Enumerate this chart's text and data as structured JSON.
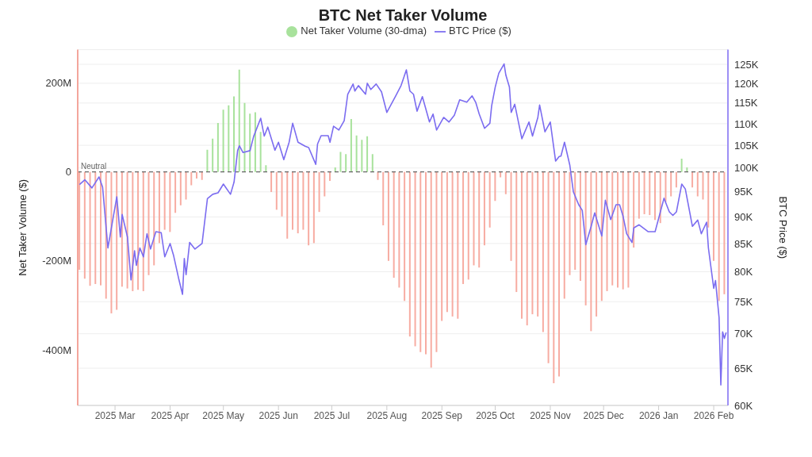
{
  "chart_data": {
    "type": "bar",
    "title": "BTC Net Taker Volume",
    "ylabel": "Net Taker Volume ($)",
    "y2label": "BTC Price ($)",
    "xlim": [
      "2025-02-08",
      "2026-02-09"
    ],
    "xticks": [
      {
        "value": "2025-03-01",
        "label": "2025 Mar"
      },
      {
        "value": "2025-04-01",
        "label": "2025 Apr"
      },
      {
        "value": "2025-05-01",
        "label": "2025 May"
      },
      {
        "value": "2025-06-01",
        "label": "2025 Jun"
      },
      {
        "value": "2025-07-01",
        "label": "2025 Jul"
      },
      {
        "value": "2025-08-01",
        "label": "2025 Aug"
      },
      {
        "value": "2025-09-01",
        "label": "2025 Sep"
      },
      {
        "value": "2025-10-01",
        "label": "2025 Oct"
      },
      {
        "value": "2025-11-01",
        "label": "2025 Nov"
      },
      {
        "value": "2025-12-01",
        "label": "2025 Dec"
      },
      {
        "value": "2026-01-01",
        "label": "2026 Jan"
      },
      {
        "value": "2026-02-01",
        "label": "2026 Feb"
      }
    ],
    "ylim": [
      -525,
      275
    ],
    "yticks": [
      {
        "value": -400,
        "label": "-400M"
      },
      {
        "value": -200,
        "label": "-200M"
      },
      0,
      {
        "value": 200,
        "label": "200M"
      }
    ],
    "y2lim": [
      60000,
      129000
    ],
    "y2ticks": [
      {
        "value": 60000,
        "label": "60K"
      },
      {
        "value": 65000,
        "label": "65K"
      },
      {
        "value": 70000,
        "label": "70K"
      },
      {
        "value": 75000,
        "label": "75K"
      },
      {
        "value": 80000,
        "label": "80K"
      },
      {
        "value": 85000,
        "label": "85K"
      },
      {
        "value": 90000,
        "label": "90K"
      },
      {
        "value": 95000,
        "label": "95K"
      },
      {
        "value": 100000,
        "label": "100K"
      },
      {
        "value": 105000,
        "label": "105K"
      },
      {
        "value": 110000,
        "label": "110K"
      },
      {
        "value": 115000,
        "label": "115K"
      },
      {
        "value": 120000,
        "label": "120K"
      },
      {
        "value": 125000,
        "label": "125K"
      }
    ],
    "log": "y2",
    "grid": "y",
    "legend": "top",
    "marker": "none",
    "ref_lines": [
      {
        "axis": "y",
        "value": 0,
        "label": "Neutral",
        "color": "#666666",
        "line_style": "dashed"
      }
    ],
    "series": [
      {
        "axis": "y",
        "name": "Net Taker Volume (30-dma)",
        "color": "#a8e29c",
        "x": [
          "2025-02-09",
          "2025-02-12",
          "2025-02-15",
          "2025-02-18",
          "2025-02-21",
          "2025-02-24",
          "2025-02-27",
          "2025-03-02",
          "2025-03-05",
          "2025-03-08",
          "2025-03-11",
          "2025-03-14",
          "2025-03-17",
          "2025-03-20",
          "2025-03-23",
          "2025-03-26",
          "2025-03-29",
          "2025-04-01",
          "2025-04-04",
          "2025-04-07",
          "2025-04-10",
          "2025-04-13",
          "2025-04-16",
          "2025-04-19",
          "2025-04-22",
          "2025-04-25",
          "2025-04-28",
          "2025-05-01",
          "2025-05-04",
          "2025-05-07",
          "2025-05-10",
          "2025-05-13",
          "2025-05-16",
          "2025-05-19",
          "2025-05-22",
          "2025-05-25",
          "2025-05-28",
          "2025-05-31",
          "2025-06-03",
          "2025-06-06",
          "2025-06-09",
          "2025-06-12",
          "2025-06-15",
          "2025-06-18",
          "2025-06-21",
          "2025-06-24",
          "2025-06-27",
          "2025-06-30",
          "2025-07-03",
          "2025-07-06",
          "2025-07-09",
          "2025-07-12",
          "2025-07-15",
          "2025-07-18",
          "2025-07-21",
          "2025-07-24",
          "2025-07-27",
          "2025-07-30",
          "2025-08-02",
          "2025-08-05",
          "2025-08-08",
          "2025-08-11",
          "2025-08-14",
          "2025-08-17",
          "2025-08-20",
          "2025-08-23",
          "2025-08-26",
          "2025-08-29",
          "2025-09-01",
          "2025-09-04",
          "2025-09-07",
          "2025-09-10",
          "2025-09-13",
          "2025-09-16",
          "2025-09-19",
          "2025-09-22",
          "2025-09-25",
          "2025-09-28",
          "2025-10-01",
          "2025-10-04",
          "2025-10-07",
          "2025-10-10",
          "2025-10-13",
          "2025-10-16",
          "2025-10-19",
          "2025-10-22",
          "2025-10-25",
          "2025-10-28",
          "2025-10-31",
          "2025-11-03",
          "2025-11-06",
          "2025-11-09",
          "2025-11-12",
          "2025-11-15",
          "2025-11-18",
          "2025-11-21",
          "2025-11-24",
          "2025-11-27",
          "2025-11-30",
          "2025-12-03",
          "2025-12-06",
          "2025-12-09",
          "2025-12-12",
          "2025-12-15",
          "2025-12-18",
          "2025-12-21",
          "2025-12-24",
          "2025-12-27",
          "2025-12-30",
          "2026-01-02",
          "2026-01-05",
          "2026-01-08",
          "2026-01-11",
          "2026-01-14",
          "2026-01-17",
          "2026-01-20",
          "2026-01-23",
          "2026-01-26",
          "2026-01-29",
          "2026-02-01",
          "2026-02-04",
          "2026-02-07"
        ],
        "values": [
          -220,
          -240,
          -256,
          -252,
          -255,
          -285,
          -318,
          -310,
          -258,
          -262,
          -268,
          -265,
          -268,
          -232,
          -210,
          -160,
          -130,
          -135,
          -92,
          -75,
          -62,
          -30,
          -15,
          -18,
          50,
          75,
          110,
          140,
          150,
          170,
          230,
          155,
          131,
          134,
          90,
          15,
          -45,
          -85,
          -100,
          -150,
          -130,
          -138,
          -130,
          -165,
          -160,
          -90,
          -55,
          -20,
          10,
          45,
          40,
          119,
          82,
          72,
          80,
          40,
          -18,
          -120,
          -200,
          -238,
          -260,
          -290,
          -370,
          -392,
          -405,
          -410,
          -440,
          -405,
          -335,
          -315,
          -325,
          -330,
          -252,
          -242,
          -210,
          -215,
          -165,
          -125,
          -65,
          -12,
          -50,
          -200,
          -270,
          -330,
          -345,
          -320,
          -325,
          -360,
          -430,
          -475,
          -460,
          -285,
          -232,
          -220,
          -245,
          -300,
          -358,
          -325,
          -290,
          -268,
          -255,
          -260,
          -264,
          -260,
          -170,
          -105,
          -95,
          -97,
          -108,
          -115,
          -68,
          -55,
          -35,
          30,
          10,
          -35,
          -55,
          -62,
          -125,
          -200,
          -290,
          -275
        ],
        "colors": [
          "#f7aca2",
          "#f7aca2",
          "#f7aca2",
          "#f7aca2",
          "#f7aca2",
          "#f7aca2",
          "#f7aca2",
          "#f7aca2",
          "#f7aca2",
          "#f7aca2",
          "#f7aca2",
          "#f7aca2",
          "#f7aca2",
          "#f7aca2",
          "#f7aca2",
          "#f7aca2",
          "#f7aca2",
          "#f7aca2",
          "#f7aca2",
          "#f7aca2",
          "#f7aca2",
          "#f7aca2",
          "#f7aca2",
          "#f7aca2",
          "#a8e29c",
          "#a8e29c",
          "#a8e29c",
          "#a8e29c",
          "#a8e29c",
          "#a8e29c",
          "#a8e29c",
          "#a8e29c",
          "#a8e29c",
          "#a8e29c",
          "#a8e29c",
          "#a8e29c",
          "#f7aca2",
          "#f7aca2",
          "#f7aca2",
          "#f7aca2",
          "#f7aca2",
          "#f7aca2",
          "#f7aca2",
          "#f7aca2",
          "#f7aca2",
          "#f7aca2",
          "#f7aca2",
          "#f7aca2",
          "#a8e29c",
          "#a8e29c",
          "#a8e29c",
          "#a8e29c",
          "#a8e29c",
          "#a8e29c",
          "#a8e29c",
          "#a8e29c",
          "#f7aca2",
          "#f7aca2",
          "#f7aca2",
          "#f7aca2",
          "#f7aca2",
          "#f7aca2",
          "#f7aca2",
          "#f7aca2",
          "#f7aca2",
          "#f7aca2",
          "#f7aca2",
          "#f7aca2",
          "#f7aca2",
          "#f7aca2",
          "#f7aca2",
          "#f7aca2",
          "#f7aca2",
          "#f7aca2",
          "#f7aca2",
          "#f7aca2",
          "#f7aca2",
          "#f7aca2",
          "#f7aca2",
          "#f7aca2",
          "#f7aca2",
          "#f7aca2",
          "#f7aca2",
          "#f7aca2",
          "#f7aca2",
          "#f7aca2",
          "#f7aca2",
          "#f7aca2",
          "#f7aca2",
          "#f7aca2",
          "#f7aca2",
          "#f7aca2",
          "#f7aca2",
          "#f7aca2",
          "#f7aca2",
          "#f7aca2",
          "#f7aca2",
          "#f7aca2",
          "#f7aca2",
          "#f7aca2",
          "#f7aca2",
          "#f7aca2",
          "#f7aca2",
          "#f7aca2",
          "#f7aca2",
          "#f7aca2",
          "#f7aca2",
          "#f7aca2",
          "#f7aca2",
          "#f7aca2",
          "#f7aca2",
          "#f7aca2",
          "#f7aca2",
          "#a8e29c",
          "#a8e29c",
          "#f7aca2",
          "#f7aca2",
          "#f7aca2",
          "#f7aca2",
          "#f7aca2",
          "#f7aca2",
          "#f7aca2"
        ]
      },
      {
        "type": "line",
        "axis": "y2",
        "name": "BTC Price ($)",
        "color": "#7b6cf0",
        "x": [
          "2025-02-09",
          "2025-02-12",
          "2025-02-16",
          "2025-02-20",
          "2025-02-22",
          "2025-02-25",
          "2025-03-02",
          "2025-03-04",
          "2025-03-05",
          "2025-03-08",
          "2025-03-10",
          "2025-03-12",
          "2025-03-13",
          "2025-03-15",
          "2025-03-17",
          "2025-03-19",
          "2025-03-21",
          "2025-03-24",
          "2025-03-27",
          "2025-03-29",
          "2025-04-01",
          "2025-04-03",
          "2025-04-06",
          "2025-04-08",
          "2025-04-09",
          "2025-04-10",
          "2025-04-12",
          "2025-04-15",
          "2025-04-19",
          "2025-04-22",
          "2025-04-25",
          "2025-04-28",
          "2025-05-01",
          "2025-05-05",
          "2025-05-07",
          "2025-05-09",
          "2025-05-10",
          "2025-05-12",
          "2025-05-16",
          "2025-05-18",
          "2025-05-22",
          "2025-05-24",
          "2025-05-26",
          "2025-05-30",
          "2025-06-01",
          "2025-06-04",
          "2025-06-07",
          "2025-06-09",
          "2025-06-12",
          "2025-06-16",
          "2025-06-18",
          "2025-06-22",
          "2025-06-23",
          "2025-06-25",
          "2025-06-29",
          "2025-06-30",
          "2025-07-02",
          "2025-07-05",
          "2025-07-08",
          "2025-07-10",
          "2025-07-13",
          "2025-07-14",
          "2025-07-16",
          "2025-07-20",
          "2025-07-21",
          "2025-07-23",
          "2025-07-26",
          "2025-07-29",
          "2025-08-01",
          "2025-08-03",
          "2025-08-06",
          "2025-08-09",
          "2025-08-12",
          "2025-08-14",
          "2025-08-16",
          "2025-08-18",
          "2025-08-21",
          "2025-08-25",
          "2025-08-27",
          "2025-08-29",
          "2025-09-02",
          "2025-09-05",
          "2025-09-08",
          "2025-09-11",
          "2025-09-15",
          "2025-09-18",
          "2025-09-20",
          "2025-09-22",
          "2025-09-25",
          "2025-09-28",
          "2025-09-29",
          "2025-10-01",
          "2025-10-03",
          "2025-10-06",
          "2025-10-07",
          "2025-10-09",
          "2025-10-10",
          "2025-10-12",
          "2025-10-16",
          "2025-10-20",
          "2025-10-22",
          "2025-10-25",
          "2025-10-26",
          "2025-10-29",
          "2025-11-01",
          "2025-11-04",
          "2025-11-06",
          "2025-11-07",
          "2025-11-09",
          "2025-11-12",
          "2025-11-14",
          "2025-11-17",
          "2025-11-19",
          "2025-11-21",
          "2025-11-24",
          "2025-11-26",
          "2025-11-30",
          "2025-12-02",
          "2025-12-05",
          "2025-12-08",
          "2025-12-10",
          "2025-12-12",
          "2025-12-14",
          "2025-12-17",
          "2025-12-18",
          "2025-12-21",
          "2025-12-26",
          "2025-12-30",
          "2026-01-04",
          "2026-01-07",
          "2026-01-09",
          "2026-01-11",
          "2026-01-14",
          "2026-01-16",
          "2026-01-20",
          "2026-01-23",
          "2026-01-25",
          "2026-01-28",
          "2026-01-29",
          "2026-02-01",
          "2026-02-02",
          "2026-02-04",
          "2026-02-05",
          "2026-02-06",
          "2026-02-07",
          "2026-02-08"
        ],
        "values": [
          96500,
          97500,
          95800,
          98100,
          96000,
          84200,
          94000,
          86200,
          90500,
          86200,
          78600,
          83700,
          81100,
          84200,
          82600,
          86800,
          84000,
          87200,
          87000,
          82600,
          85000,
          82800,
          78600,
          76200,
          82300,
          79500,
          85200,
          84000,
          85000,
          93600,
          94500,
          94800,
          96600,
          94500,
          97000,
          103800,
          104900,
          103400,
          103800,
          107000,
          111300,
          107100,
          109200,
          103900,
          105700,
          101800,
          105700,
          110100,
          105700,
          104800,
          104500,
          100800,
          105300,
          107200,
          107200,
          105700,
          109400,
          108500,
          110700,
          117200,
          119800,
          118000,
          119400,
          117200,
          120000,
          118400,
          119800,
          117800,
          112700,
          114300,
          116800,
          119400,
          123500,
          118000,
          117200,
          113000,
          116600,
          110400,
          112300,
          108500,
          111500,
          110400,
          112000,
          115800,
          115200,
          116800,
          115200,
          112300,
          108900,
          110100,
          114300,
          119000,
          122600,
          125100,
          122100,
          119000,
          112700,
          114700,
          106500,
          110400,
          107100,
          111500,
          114500,
          108100,
          110400,
          101500,
          102500,
          102600,
          105700,
          100600,
          95000,
          92400,
          91300,
          84800,
          88200,
          90800,
          86400,
          93300,
          89500,
          92400,
          92400,
          90100,
          86800,
          85200,
          87900,
          88500,
          87200,
          87200,
          93700,
          91000,
          90300,
          91000,
          96600,
          95600,
          88200,
          89400,
          86800,
          89000,
          84200,
          77200,
          78500,
          72500,
          62700,
          70300,
          69300,
          70200
        ]
      }
    ]
  }
}
